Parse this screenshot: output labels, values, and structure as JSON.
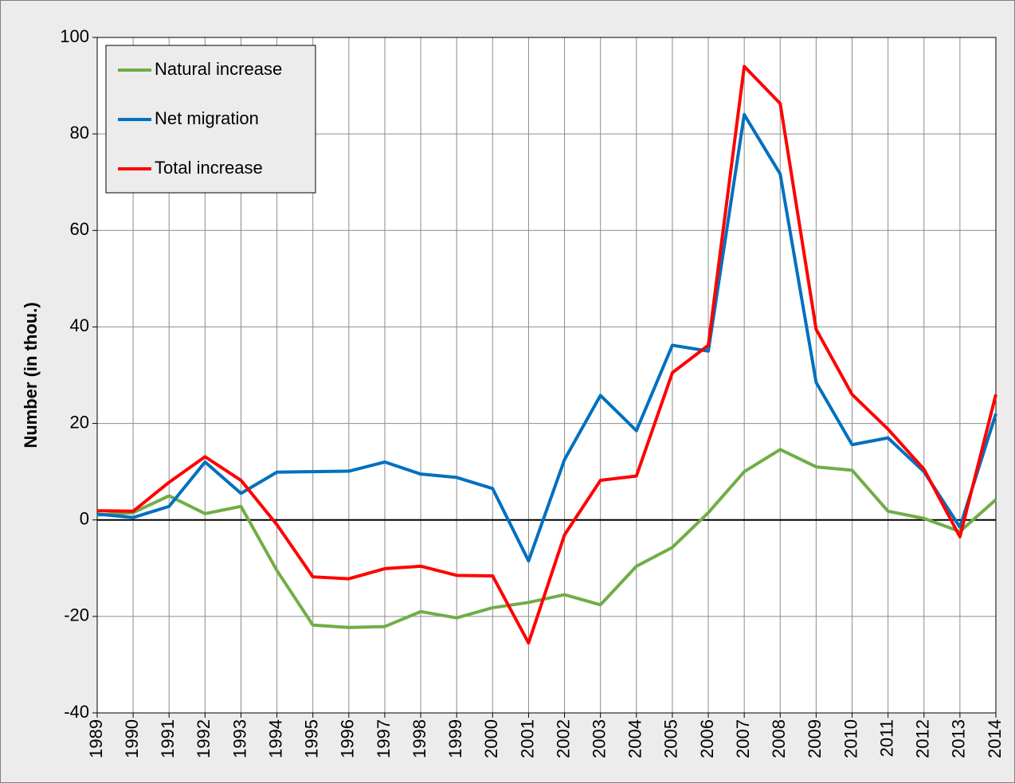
{
  "chart_data": {
    "type": "line",
    "ylabel": "Number (in thou.)",
    "x": [
      1989,
      1990,
      1991,
      1992,
      1993,
      1994,
      1995,
      1996,
      1997,
      1998,
      1999,
      2000,
      2001,
      2002,
      2003,
      2004,
      2005,
      2006,
      2007,
      2008,
      2009,
      2010,
      2011,
      2012,
      2013,
      2014
    ],
    "xlim": [
      1989,
      2014
    ],
    "xticks": [
      1989,
      1990,
      1991,
      1992,
      1993,
      1994,
      1995,
      1996,
      1997,
      1998,
      1999,
      2000,
      2001,
      2002,
      2003,
      2004,
      2005,
      2006,
      2007,
      2008,
      2009,
      2010,
      2011,
      2012,
      2013,
      2014
    ],
    "ylim": [
      -40,
      100
    ],
    "yticks": [
      -40,
      -20,
      0,
      20,
      40,
      60,
      80,
      100
    ],
    "grid": true,
    "legend": "top-left",
    "series": [
      {
        "name": "Natural increase",
        "color": "#70ad47",
        "values": [
          1,
          1.5,
          5,
          1.3,
          2.8,
          -10.5,
          -21.8,
          -22.3,
          -22.1,
          -19,
          -20.3,
          -18.2,
          -17.1,
          -15.5,
          -17.6,
          -9.6,
          -5.7,
          1.5,
          10,
          14.6,
          11,
          10.3,
          1.8,
          0.3,
          -2.4,
          4.2
        ]
      },
      {
        "name": "Net migration",
        "color": "#0070c0",
        "values": [
          1.2,
          0.5,
          2.8,
          12,
          5.5,
          9.9,
          10,
          10.1,
          12,
          9.5,
          8.8,
          6.5,
          -8.5,
          12.5,
          25.8,
          18.5,
          36.2,
          35,
          84,
          71.7,
          28.5,
          15.6,
          17,
          10,
          -1.5,
          22
        ]
      },
      {
        "name": "Total increase",
        "color": "#ff0000",
        "values": [
          1.9,
          1.8,
          7.8,
          13.1,
          8.2,
          -1,
          -11.8,
          -12.2,
          -10.1,
          -9.6,
          -11.5,
          -11.6,
          -25.5,
          -3.1,
          8.2,
          9.1,
          30.5,
          36.2,
          94,
          86.3,
          39.5,
          26,
          18.8,
          10.5,
          -3.5,
          26
        ]
      }
    ]
  }
}
